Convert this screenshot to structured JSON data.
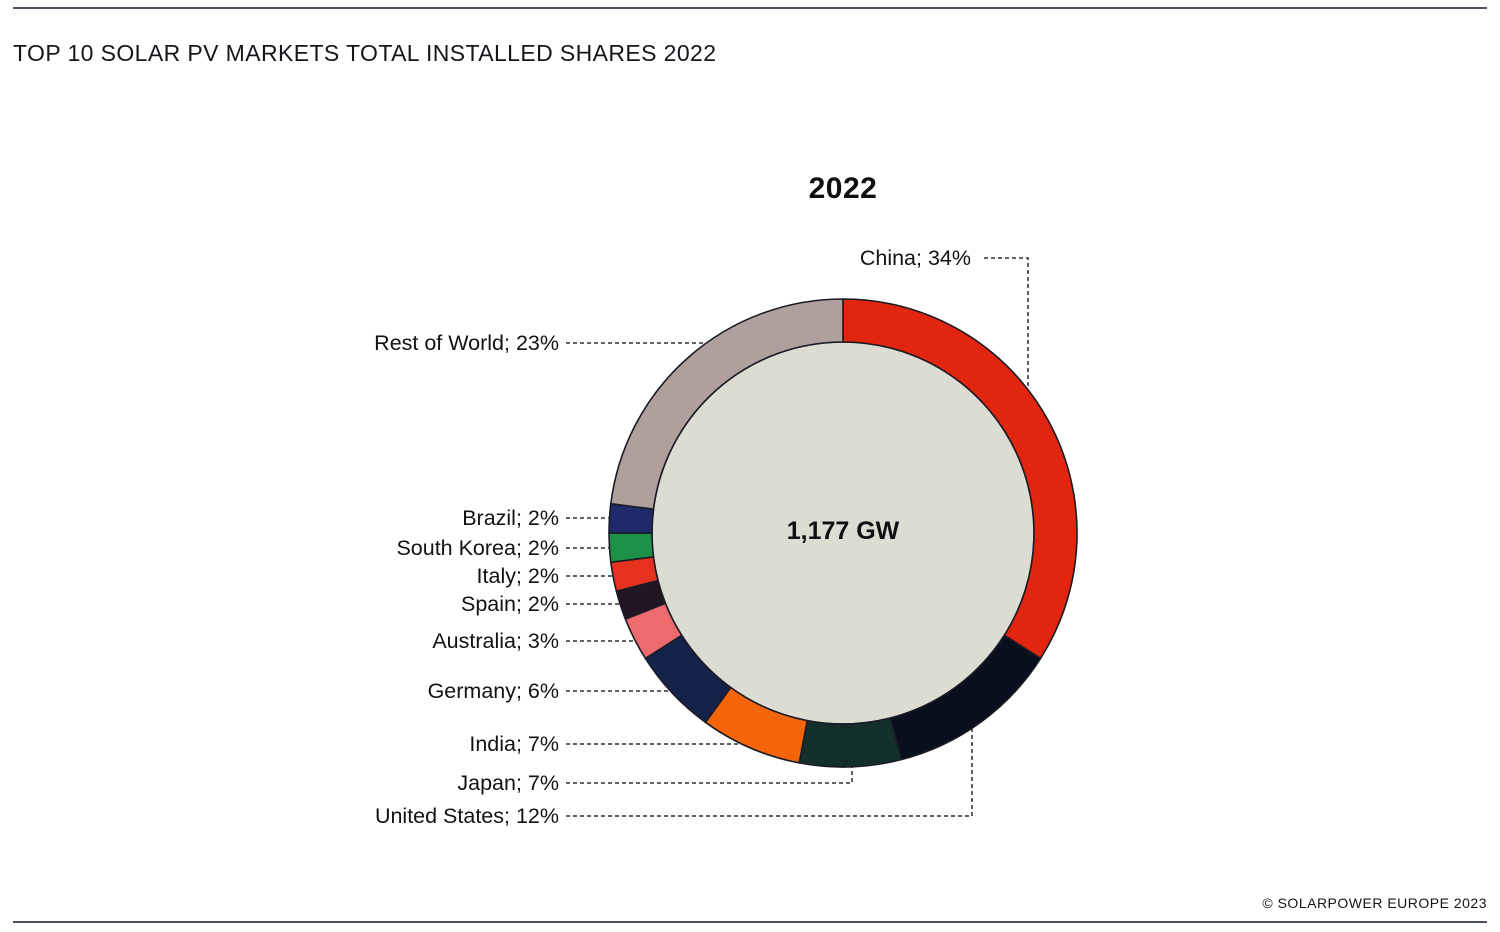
{
  "header": {
    "title": "TOP 10 SOLAR PV MARKETS TOTAL INSTALLED SHARES 2022"
  },
  "footer": {
    "credit": "© SOLARPOWER EUROPE 2023"
  },
  "chart_data": {
    "type": "pie",
    "subtype": "donut",
    "title": "2022",
    "center_total_label": "1,177 GW",
    "start_position": "12-oclock",
    "direction": "clockwise",
    "slices": [
      {
        "name": "China",
        "value_pct": 34,
        "label": "China; 34%",
        "color": "#E2250F"
      },
      {
        "name": "United States",
        "value_pct": 12,
        "label": "United States; 12%",
        "color": "#0A0F1E"
      },
      {
        "name": "Japan",
        "value_pct": 7,
        "label": "Japan; 7%",
        "color": "#123029"
      },
      {
        "name": "India",
        "value_pct": 7,
        "label": "India; 7%",
        "color": "#F4650A"
      },
      {
        "name": "Germany",
        "value_pct": 6,
        "label": "Germany; 6%",
        "color": "#15224A"
      },
      {
        "name": "Australia",
        "value_pct": 3,
        "label": "Australia; 3%",
        "color": "#ED6A6D"
      },
      {
        "name": "Spain",
        "value_pct": 2,
        "label": "Spain; 2%",
        "color": "#221623"
      },
      {
        "name": "Italy",
        "value_pct": 2,
        "label": "Italy; 2%",
        "color": "#E6311F"
      },
      {
        "name": "South Korea",
        "value_pct": 2,
        "label": "South Korea; 2%",
        "color": "#1D9048"
      },
      {
        "name": "Brazil",
        "value_pct": 2,
        "label": "Brazil; 2%",
        "color": "#1E2A6B"
      },
      {
        "name": "Rest of World",
        "value_pct": 23,
        "label": "Rest of World; 23%",
        "color": "#AFA09E"
      }
    ],
    "inner_fill": "#DCDCD3",
    "outline_color": "#1B1B26",
    "leader_color": "#303030"
  }
}
